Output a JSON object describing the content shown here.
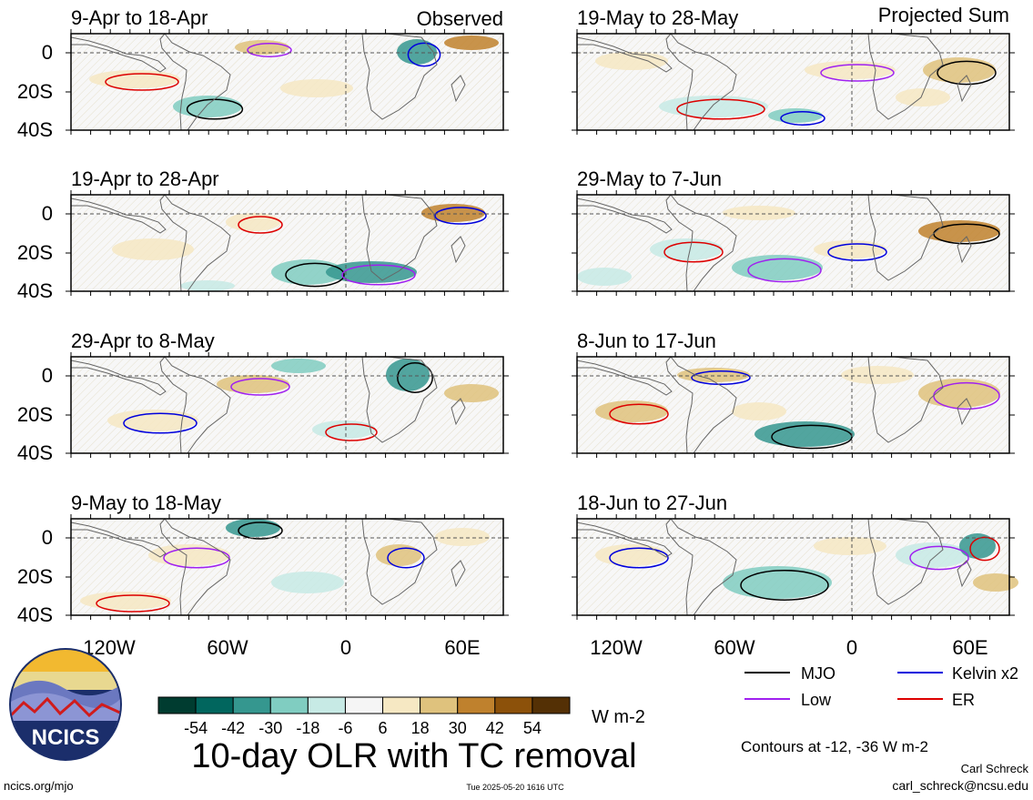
{
  "figure": {
    "title": "10-day OLR with TC removal",
    "units": "W m-2",
    "contour_note": "Contours at -12, -36 W m-2",
    "credit_name": "Carl Schreck",
    "credit_email": "carl_schreck@ncsu.edu",
    "site": "ncics.org/mjo",
    "timestamp": "Tue 2025-05-20 1616 UTC",
    "logo_text": "NCICS"
  },
  "columns": [
    {
      "header": "Observed"
    },
    {
      "header": "Projected Sum"
    }
  ],
  "panels": [
    {
      "label": "9-Apr to 18-Apr"
    },
    {
      "label": "19-Apr to 28-Apr"
    },
    {
      "label": "29-Apr to 8-May"
    },
    {
      "label": "9-May to 18-May"
    },
    {
      "label": "19-May to 28-May"
    },
    {
      "label": "29-May to 7-Jun"
    },
    {
      "label": "8-Jun to 17-Jun"
    },
    {
      "label": "18-Jun to 27-Jun"
    }
  ],
  "axes": {
    "lat_ticks": [
      "0",
      "20S",
      "40S"
    ],
    "lon_ticks": [
      "120W",
      "60W",
      "0",
      "60E"
    ]
  },
  "legend": {
    "items": [
      {
        "label": "MJO",
        "color": "#000000"
      },
      {
        "label": "Kelvin x2",
        "color": "#0000dd"
      },
      {
        "label": "Low",
        "color": "#a020f0"
      },
      {
        "label": "ER",
        "color": "#dd0000"
      }
    ]
  },
  "colorbar": {
    "labels": [
      "-54",
      "-42",
      "-30",
      "-18",
      "-6",
      "6",
      "18",
      "30",
      "42",
      "54"
    ],
    "colors": [
      "#003c30",
      "#01665e",
      "#35978f",
      "#80cdc1",
      "#c7eae5",
      "#f5f5f5",
      "#f6e8c3",
      "#dfc27d",
      "#bf812d",
      "#8c510a",
      "#543005"
    ]
  },
  "chart_data": {
    "type": "heatmap",
    "variable": "10-day OLR with TC removal",
    "units": "W m-2",
    "contour_levels": [
      -12,
      -36
    ],
    "lon_range": [
      -160,
      80
    ],
    "lat_range": [
      -40,
      10
    ],
    "lat_ticks": [
      0,
      -20,
      -40
    ],
    "lon_ticks": [
      -120,
      -60,
      0,
      60
    ]
  }
}
